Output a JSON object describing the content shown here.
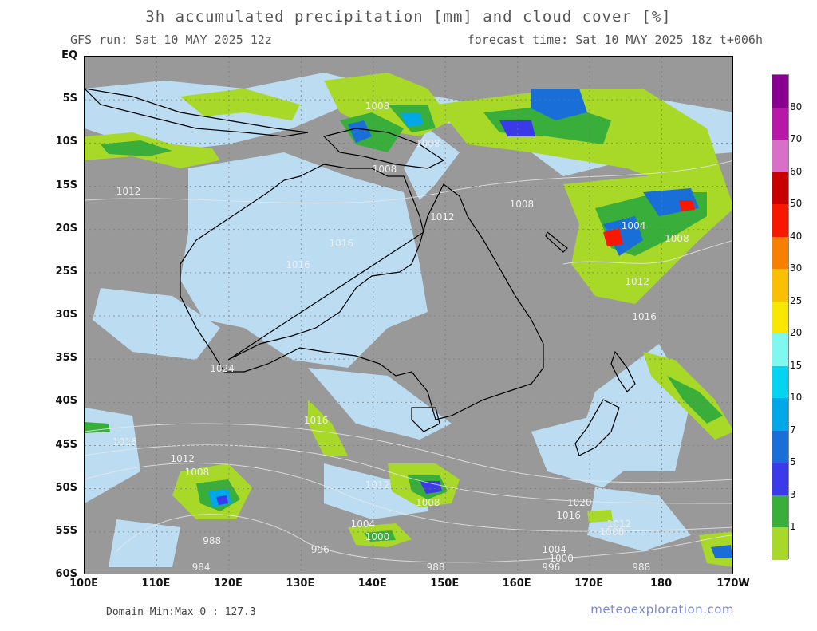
{
  "header": {
    "title": "3h accumulated precipitation [mm] and cloud cover [%]",
    "run": "GFS run: Sat 10 MAY 2025 12z",
    "forecast": "forecast time: Sat 10 MAY 2025 18z  t+006h"
  },
  "axes": {
    "lat_labels": [
      "EQ",
      "5S",
      "10S",
      "15S",
      "20S",
      "25S",
      "30S",
      "35S",
      "40S",
      "45S",
      "50S",
      "55S",
      "60S"
    ],
    "lon_labels": [
      "100E",
      "110E",
      "120E",
      "130E",
      "140E",
      "150E",
      "160E",
      "170E",
      "180",
      "170W"
    ]
  },
  "isobars": [
    {
      "text": "1008",
      "lon": 139,
      "lat": -5.2
    },
    {
      "text": "1008",
      "lon": 146,
      "lat": -9.5
    },
    {
      "text": "1008",
      "lon": 140,
      "lat": -12.5
    },
    {
      "text": "1012",
      "lon": 104.5,
      "lat": -15
    },
    {
      "text": "1012",
      "lon": 148,
      "lat": -18
    },
    {
      "text": "1008",
      "lon": 159,
      "lat": -16.5
    },
    {
      "text": "1004",
      "lon": 174.5,
      "lat": -19
    },
    {
      "text": "1008",
      "lon": 180.5,
      "lat": -20.5
    },
    {
      "text": "1012",
      "lon": 175,
      "lat": -25.5
    },
    {
      "text": "1016",
      "lon": 176,
      "lat": -29.5
    },
    {
      "text": "1016",
      "lon": 134,
      "lat": -21
    },
    {
      "text": "1016",
      "lon": 128,
      "lat": -23.5
    },
    {
      "text": "1016",
      "lon": 130.5,
      "lat": -41.5
    },
    {
      "text": "1016",
      "lon": 104,
      "lat": -44
    },
    {
      "text": "1012",
      "lon": 112,
      "lat": -46
    },
    {
      "text": "1008",
      "lon": 114,
      "lat": -47.5
    },
    {
      "text": "1012",
      "lon": 139,
      "lat": -49
    },
    {
      "text": "1008",
      "lon": 146,
      "lat": -51
    },
    {
      "text": "1020",
      "lon": 167,
      "lat": -51
    },
    {
      "text": "1016",
      "lon": 165.5,
      "lat": -52.5
    },
    {
      "text": "1012",
      "lon": 172.5,
      "lat": -53.5
    },
    {
      "text": "1008",
      "lon": 171.5,
      "lat": -54.5
    },
    {
      "text": "1004",
      "lon": 137,
      "lat": -53.5
    },
    {
      "text": "1000",
      "lon": 139,
      "lat": -55
    },
    {
      "text": "988",
      "lon": 116.5,
      "lat": -55.5
    },
    {
      "text": "996",
      "lon": 131.5,
      "lat": -56.5
    },
    {
      "text": "1004",
      "lon": 163.5,
      "lat": -56.5
    },
    {
      "text": "1000",
      "lon": 164.5,
      "lat": -57.5
    },
    {
      "text": "996",
      "lon": 163.5,
      "lat": -58.5
    },
    {
      "text": "988",
      "lon": 147.5,
      "lat": -59.5
    },
    {
      "text": "984",
      "lon": 115,
      "lat": -60.5
    },
    {
      "text": "988",
      "lon": 176,
      "lat": -59
    },
    {
      "text": "1024",
      "lon": 117.5,
      "lat": -35.5
    }
  ],
  "colorbar": {
    "labels": [
      "1",
      "3",
      "5",
      "7",
      "10",
      "15",
      "20",
      "25",
      "30",
      "40",
      "50",
      "60",
      "70",
      "80"
    ],
    "colors": [
      "#a8d828",
      "#3aae3a",
      "#3a3ae8",
      "#1a6ed8",
      "#00a8e8",
      "#00d4f0",
      "#80f8f0",
      "#f8e800",
      "#f8c000",
      "#f88000",
      "#f81800",
      "#c80000",
      "#d870c8",
      "#b818a8",
      "#880090"
    ]
  },
  "footer": {
    "domain": "Domain Min:Max 0 : 127.3",
    "brand": "meteoexploration.com"
  }
}
